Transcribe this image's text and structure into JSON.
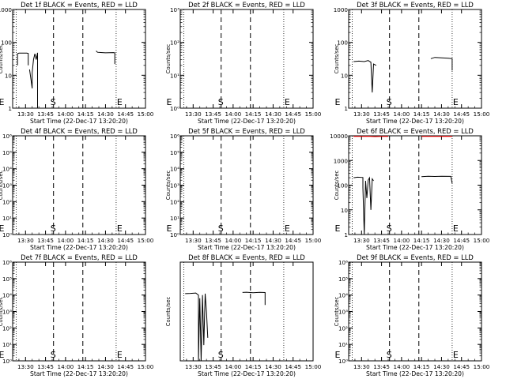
{
  "figure": {
    "xlabel": "Start Time (22-Dec-17 13:20:20)",
    "ylabel": "Counts/sec",
    "xticks": [
      "13:30",
      "13:45",
      "14:00",
      "14:15",
      "14:30",
      "14:45",
      "15:00"
    ],
    "colors": {
      "events": "#000000",
      "lld": "#ff0000"
    },
    "markers": {
      "E1": "13:23",
      "S": "13:51",
      "E2": "14:38"
    }
  },
  "chart_data": [
    {
      "type": "line",
      "title": "Det 1f BLACK = Events, RED = LLD",
      "yscale": "log",
      "ylim": [
        1,
        1000
      ],
      "yticks": [
        "1",
        "10",
        "100",
        "1000"
      ],
      "labels": {
        "E1": "E",
        "S": "S",
        "E2": "E"
      },
      "series": [
        {
          "color": "events",
          "segments": [
            [
              [
                "13:24",
                20
              ],
              [
                "13:24",
                45
              ],
              [
                "13:25",
                47
              ],
              [
                "13:31",
                47
              ],
              [
                "13:32",
                46
              ],
              [
                "13:32",
                20
              ]
            ],
            [
              [
                "13:33",
                15
              ],
              [
                "13:34",
                8
              ],
              [
                "13:35",
                4
              ],
              [
                "13:35",
                12
              ],
              [
                "13:36",
                30
              ],
              [
                "13:37",
                45
              ],
              [
                "13:38",
                30
              ],
              [
                "13:39",
                48
              ],
              [
                "13:39",
                1
              ]
            ],
            [
              [
                "14:23",
                55
              ],
              [
                "14:24",
                50
              ],
              [
                "14:30",
                48
              ],
              [
                "14:36",
                49
              ],
              [
                "14:37",
                48
              ],
              [
                "14:37",
                22
              ]
            ]
          ]
        }
      ]
    },
    {
      "type": "line",
      "title": "Det 2f BLACK = Events, RED = LLD",
      "yscale": "log",
      "ylim": [
        1,
        1000
      ],
      "yticks": [
        "10⁰",
        "10¹",
        "10²",
        "10³"
      ],
      "labels": {
        "E1": "E",
        "S": "S",
        "E2": "E"
      },
      "series": []
    },
    {
      "type": "line",
      "title": "Det 3f BLACK = Events, RED = LLD",
      "yscale": "log",
      "ylim": [
        1,
        1000
      ],
      "yticks": [
        "1",
        "10",
        "100",
        "1000"
      ],
      "labels": {
        "E1": "E",
        "S": "S",
        "E2": "E"
      },
      "series": [
        {
          "color": "events",
          "segments": [
            [
              [
                "13:24",
                26
              ],
              [
                "13:28",
                27
              ],
              [
                "13:32",
                26
              ],
              [
                "13:35",
                28
              ],
              [
                "13:37",
                25
              ],
              [
                "13:38",
                3
              ],
              [
                "13:39",
                22
              ],
              [
                "13:41",
                20
              ]
            ],
            [
              [
                "14:22",
                32
              ],
              [
                "14:25",
                35
              ],
              [
                "14:30",
                34
              ],
              [
                "14:35",
                33
              ],
              [
                "14:38",
                32
              ],
              [
                "14:38",
                14
              ]
            ]
          ]
        }
      ]
    },
    {
      "type": "line",
      "title": "Det 4f BLACK = Events, RED = LLD",
      "yscale": "log",
      "ylim": [
        1,
        1000000
      ],
      "yticks": [
        "10⁰",
        "10¹",
        "10²",
        "10³",
        "10⁴",
        "10⁵",
        "10⁶"
      ],
      "labels": {
        "E1": "E",
        "S": "S",
        "E2": "E"
      },
      "series": []
    },
    {
      "type": "line",
      "title": "Det 5f BLACK = Events, RED = LLD",
      "yscale": "log",
      "ylim": [
        1,
        1000000
      ],
      "yticks": [
        "10⁰",
        "10¹",
        "10²",
        "10³",
        "10⁴",
        "10⁵",
        "10⁶"
      ],
      "labels": {
        "E1": "E",
        "S": "S",
        "E2": "E"
      },
      "series": []
    },
    {
      "type": "line",
      "title": "Det 6f BLACK = Events, RED = LLD",
      "yscale": "log",
      "ylim": [
        1,
        10000
      ],
      "yticks": [
        "1",
        "10",
        "100",
        "1000",
        "10000"
      ],
      "labels": {
        "E1": "E",
        "S": "S",
        "E2": "E"
      },
      "series": [
        {
          "color": "lld",
          "segments": [
            [
              [
                "13:24",
                9500
              ],
              [
                "13:30",
                9400
              ],
              [
                "13:35",
                9600
              ],
              [
                "13:40",
                9300
              ],
              [
                "13:45",
                9500
              ],
              [
                "13:50",
                9400
              ]
            ],
            [
              [
                "14:15",
                9500
              ],
              [
                "14:25",
                9400
              ],
              [
                "14:35",
                9600
              ],
              [
                "14:38",
                9500
              ]
            ]
          ]
        },
        {
          "color": "events",
          "segments": [
            [
              [
                "13:24",
                200
              ],
              [
                "13:27",
                210
              ],
              [
                "13:31",
                205
              ],
              [
                "13:31",
                80
              ],
              [
                "13:32",
                1
              ],
              [
                "13:33",
                150
              ],
              [
                "13:34",
                30
              ],
              [
                "13:35",
                160
              ],
              [
                "13:36",
                200
              ],
              [
                "13:37",
                10
              ],
              [
                "13:38",
                180
              ],
              [
                "13:39",
                150
              ]
            ],
            [
              [
                "14:15",
                220
              ],
              [
                "14:20",
                230
              ],
              [
                "14:25",
                225
              ],
              [
                "14:30",
                228
              ],
              [
                "14:37",
                226
              ],
              [
                "14:38",
                120
              ]
            ]
          ]
        }
      ]
    },
    {
      "type": "line",
      "title": "Det 7f BLACK = Events, RED = LLD",
      "yscale": "log",
      "ylim": [
        1,
        1000000
      ],
      "yticks": [
        "10⁰",
        "10¹",
        "10²",
        "10³",
        "10⁴",
        "10⁵",
        "10⁶"
      ],
      "labels": {
        "E1": "E",
        "S": "S",
        "E2": "E"
      },
      "series": []
    },
    {
      "type": "line",
      "title": "Det 8f BLACK = Events, RED = LLD",
      "yscale": "log",
      "ylim": [
        1,
        1000
      ],
      "yticks": [],
      "labels": {
        "E1": "",
        "S": "S",
        "E2": ""
      },
      "series": [
        {
          "color": "events",
          "segments": [
            [
              [
                "13:24",
                110
              ],
              [
                "13:28",
                112
              ],
              [
                "13:32",
                115
              ],
              [
                "13:34",
                100
              ],
              [
                "13:34",
                1
              ],
              [
                "13:35",
                80
              ],
              [
                "13:36",
                1
              ],
              [
                "13:37",
                100
              ],
              [
                "13:38",
                3
              ],
              [
                "13:39",
                110
              ],
              [
                "13:40",
                30
              ],
              [
                "13:41",
                5
              ]
            ],
            [
              [
                "14:07",
                120
              ],
              [
                "14:10",
                122
              ],
              [
                "14:15",
                118
              ],
              [
                "14:20",
                121
              ],
              [
                "14:24",
                119
              ],
              [
                "14:24",
                50
              ]
            ]
          ]
        }
      ]
    },
    {
      "type": "line",
      "title": "Det 9f BLACK = Events, RED = LLD",
      "yscale": "log",
      "ylim": [
        1,
        1000000
      ],
      "yticks": [
        "10⁰",
        "10¹",
        "10²",
        "10³",
        "10⁴",
        "10⁵",
        "10⁶"
      ],
      "labels": {
        "E1": "E",
        "S": "S",
        "E2": "E"
      },
      "series": []
    }
  ]
}
